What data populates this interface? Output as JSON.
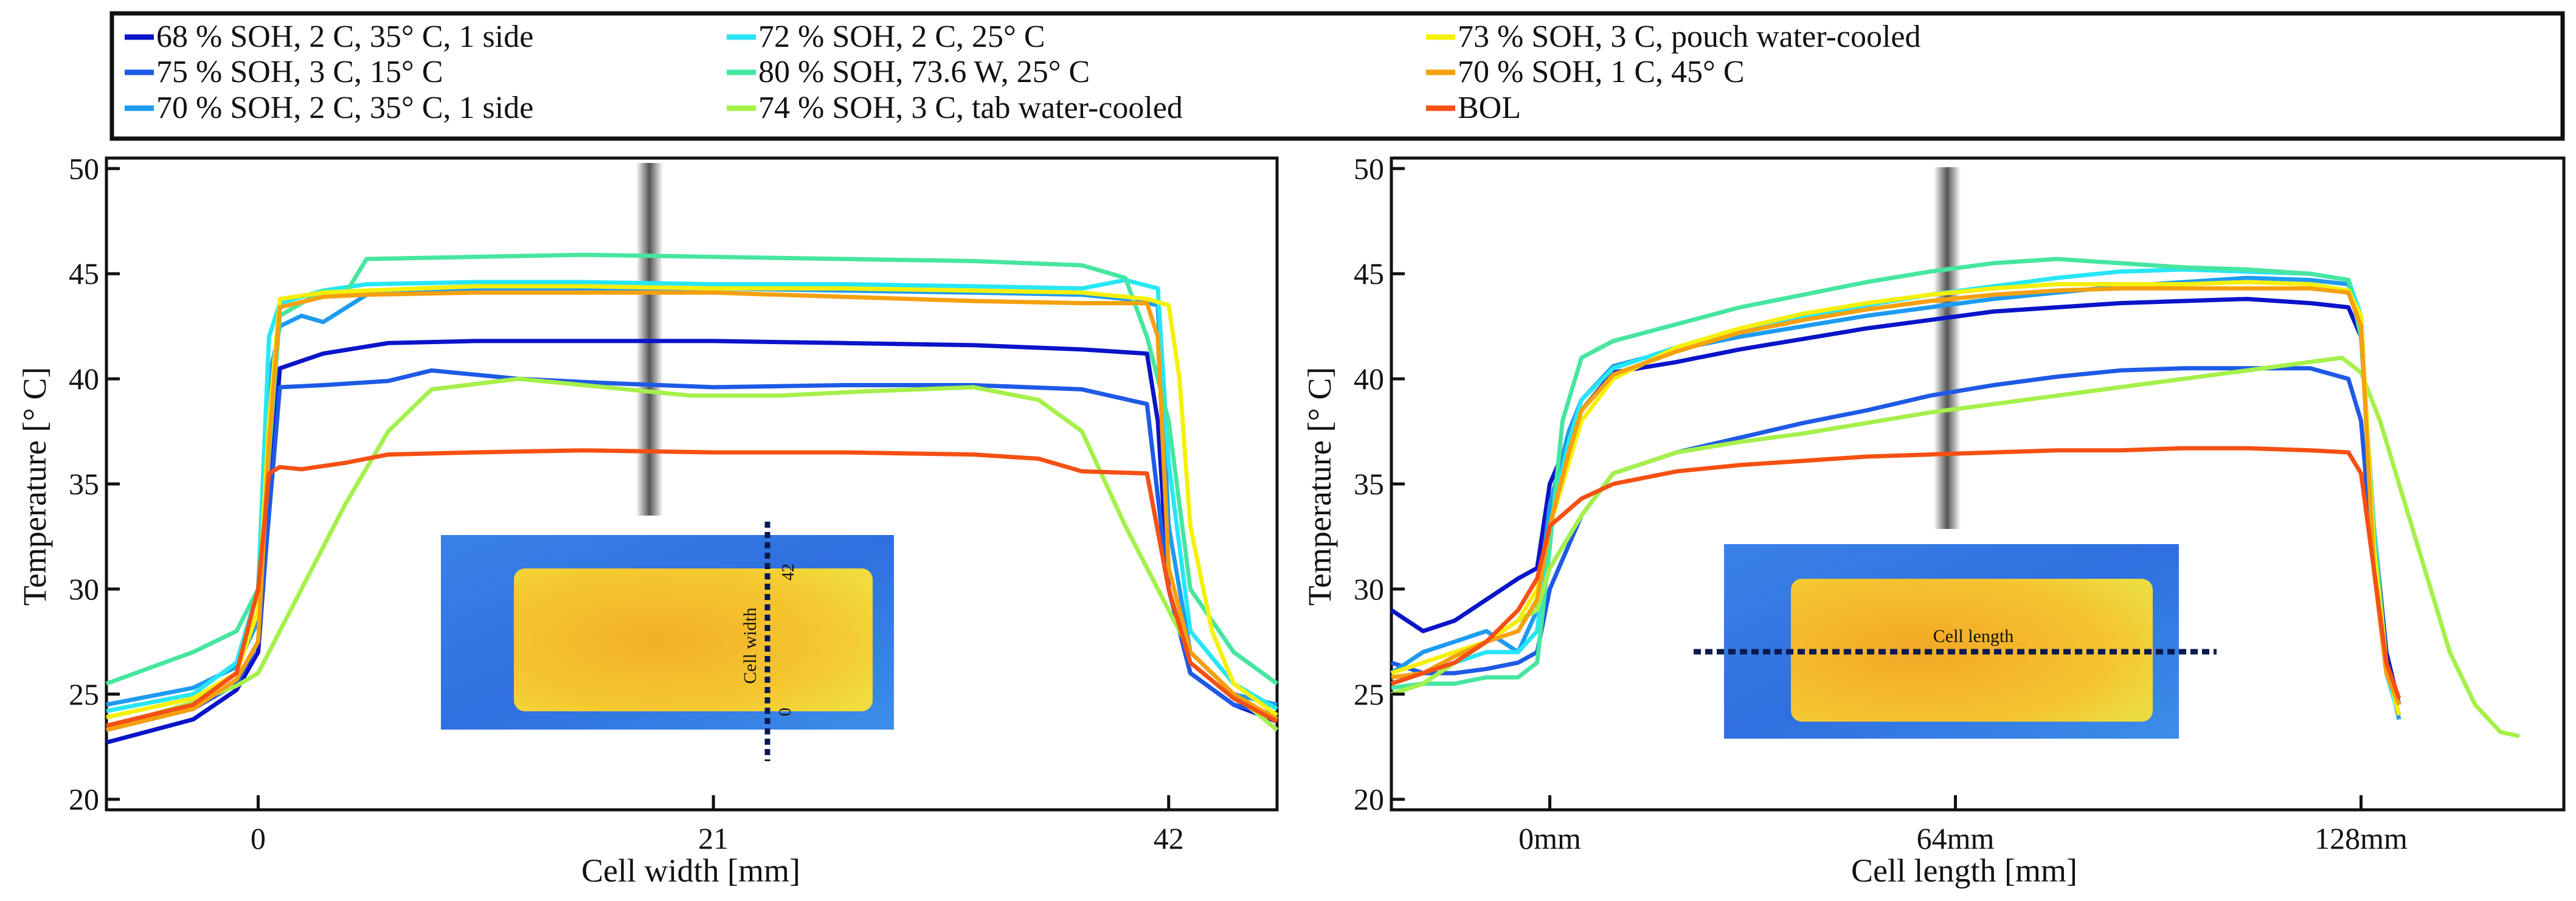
{
  "legend": {
    "entries": [
      {
        "label": "68 % SOH, 2 C, 35° C, 1 side",
        "color": "#0a14c8"
      },
      {
        "label": "75 % SOH, 3 C, 15° C",
        "color": "#1e5ae6"
      },
      {
        "label": "70 % SOH, 2 C, 35° C, 1 side",
        "color": "#1e9bf0"
      },
      {
        "label": "72 % SOH, 2 C, 25° C",
        "color": "#28e6f5"
      },
      {
        "label": "80 % SOH, 73.6 W, 25° C",
        "color": "#46e6a0"
      },
      {
        "label": "74 % SOH, 3 C, tab water-cooled",
        "color": "#a5f04b"
      },
      {
        "label": "73 % SOH, 3 C, pouch water-cooled",
        "color": "#f5f00a"
      },
      {
        "label": "70 % SOH, 1 C, 45° C",
        "color": "#f5a00f"
      },
      {
        "label": "BOL",
        "color": "#f55014"
      }
    ]
  },
  "chart_data": [
    {
      "type": "line",
      "xlabel": "Cell width [mm]",
      "ylabel": "Temperature [° C]",
      "xlim": [
        -7,
        47
      ],
      "ylim": [
        19.5,
        50.5
      ],
      "xticks": [
        {
          "value": 0,
          "label": "0"
        },
        {
          "value": 21,
          "label": "21"
        },
        {
          "value": 42,
          "label": "42"
        }
      ],
      "yticks": [
        20,
        25,
        30,
        35,
        40,
        45,
        50
      ],
      "inset": {
        "annotation": "Cell width",
        "scale_start": "0",
        "scale_end": "42",
        "orientation": "vertical"
      },
      "series": [
        {
          "name": "68 % SOH, 2 C, 35° C, 1 side",
          "x": [
            -7,
            -3,
            -1,
            0,
            1,
            3,
            6,
            10,
            15,
            21,
            27,
            33,
            38,
            41,
            41.5,
            42,
            43,
            45,
            47
          ],
          "y": [
            22.7,
            23.8,
            25.2,
            27,
            40.5,
            41.2,
            41.7,
            41.8,
            41.8,
            41.8,
            41.7,
            41.6,
            41.4,
            41.2,
            38,
            30,
            26,
            24.5,
            23.7
          ]
        },
        {
          "name": "75 % SOH, 3 C, 15° C",
          "x": [
            -7,
            -3,
            -1,
            0,
            1,
            3,
            6,
            8,
            12,
            16,
            21,
            27,
            33,
            38,
            41,
            42,
            43,
            45,
            47
          ],
          "y": [
            23.3,
            24.3,
            25.5,
            27.5,
            39.6,
            39.7,
            39.9,
            40.4,
            40,
            39.8,
            39.6,
            39.7,
            39.7,
            39.5,
            38.8,
            30,
            26,
            24.5,
            24
          ]
        },
        {
          "name": "70 % SOH, 2 C, 35° C, 1 side",
          "x": [
            -7,
            -3,
            -1,
            0,
            0.5,
            1,
            2,
            3,
            5,
            10,
            15,
            21,
            27,
            33,
            38,
            40,
            41.5,
            42,
            43,
            45,
            47
          ],
          "y": [
            24.5,
            25.3,
            26.3,
            28.5,
            40,
            42.5,
            43,
            42.7,
            44,
            44.2,
            44.3,
            44.3,
            44.2,
            44.1,
            44,
            43.8,
            43.5,
            33,
            27,
            25,
            24.5
          ]
        },
        {
          "name": "72 % SOH, 2 C, 25° C",
          "x": [
            -7,
            -3,
            -1,
            0,
            0.5,
            1,
            3,
            5,
            10,
            15,
            21,
            27,
            33,
            38,
            40,
            41.5,
            42,
            43,
            45,
            47
          ],
          "y": [
            24.2,
            25,
            26.5,
            30,
            42,
            43.6,
            44.2,
            44.5,
            44.6,
            44.6,
            44.5,
            44.5,
            44.4,
            44.3,
            44.7,
            44.3,
            36,
            28,
            25.5,
            24.3
          ]
        },
        {
          "name": "80 % SOH, 73.6 W, 25° C",
          "x": [
            -7,
            -3,
            -1,
            0,
            1,
            3,
            4,
            5,
            10,
            15,
            21,
            27,
            33,
            38,
            40,
            41,
            42,
            43,
            45,
            47
          ],
          "y": [
            25.5,
            27,
            28,
            30,
            43,
            44.2,
            44,
            45.7,
            45.8,
            45.9,
            45.8,
            45.7,
            45.6,
            45.4,
            44.8,
            42,
            38,
            30,
            27,
            25.5
          ]
        },
        {
          "name": "74 % SOH, 3 C, tab water-cooled",
          "x": [
            -7,
            -5,
            -3,
            -1,
            0,
            2,
            4,
            6,
            8,
            12,
            16,
            20,
            24,
            28,
            33,
            36,
            38,
            40,
            42,
            43,
            45,
            47
          ],
          "y": [
            23.5,
            24,
            24.6,
            25.4,
            26,
            30,
            34,
            37.5,
            39.5,
            40,
            39.6,
            39.2,
            39.2,
            39.4,
            39.6,
            39,
            37.5,
            33,
            29,
            27,
            25,
            23.3
          ]
        },
        {
          "name": "73 % SOH, 3 C, pouch water-cooled",
          "x": [
            -7,
            -3,
            -1,
            0,
            0.5,
            1,
            3,
            5,
            10,
            15,
            21,
            27,
            33,
            38,
            41,
            42,
            42.5,
            43,
            44,
            45,
            47
          ],
          "y": [
            23.9,
            24.8,
            26,
            29,
            38,
            43.8,
            44.1,
            44.2,
            44.4,
            44.4,
            44.3,
            44.3,
            44.2,
            44.1,
            43.8,
            43.5,
            40,
            33,
            28,
            25.5,
            24
          ]
        },
        {
          "name": "70 % SOH, 1 C, 45° C",
          "x": [
            -7,
            -3,
            -1,
            0,
            0.5,
            1,
            3,
            5,
            10,
            15,
            21,
            27,
            33,
            38,
            41,
            41.5,
            42,
            43,
            45,
            47
          ],
          "y": [
            23.3,
            24.3,
            25.7,
            27.5,
            37,
            43.4,
            43.9,
            44,
            44.1,
            44.1,
            44.1,
            43.9,
            43.7,
            43.6,
            43.6,
            42,
            31,
            27,
            25,
            23.8
          ]
        },
        {
          "name": "BOL",
          "x": [
            -7,
            -3,
            -1,
            0,
            0.5,
            1,
            2,
            4,
            6,
            10,
            15,
            21,
            27,
            33,
            36,
            38,
            41,
            42,
            43,
            45,
            47
          ],
          "y": [
            23.5,
            24.5,
            26,
            30,
            35.5,
            35.8,
            35.7,
            36,
            36.4,
            36.5,
            36.6,
            36.5,
            36.5,
            36.4,
            36.2,
            35.6,
            35.5,
            30,
            26.5,
            24.8,
            23.7
          ]
        }
      ]
    },
    {
      "type": "line",
      "xlabel": "Cell length [mm]",
      "ylabel": "Temperature [° C]",
      "xlim": [
        -25,
        160
      ],
      "ylim": [
        19.5,
        50.5
      ],
      "xticks": [
        {
          "value": 0,
          "label": "0mm"
        },
        {
          "value": 64,
          "label": "64mm"
        },
        {
          "value": 128,
          "label": "128mm"
        }
      ],
      "yticks": [
        20,
        25,
        30,
        35,
        40,
        45,
        50
      ],
      "inset": {
        "annotation": "Cell length",
        "orientation": "horizontal"
      },
      "series": [
        {
          "name": "68 % SOH, 2 C, 35° C, 1 side",
          "x": [
            -25,
            -20,
            -15,
            -10,
            -5,
            -2,
            0,
            5,
            10,
            20,
            30,
            40,
            50,
            60,
            70,
            80,
            90,
            100,
            110,
            120,
            126,
            128,
            130,
            132,
            134
          ],
          "y": [
            29,
            28,
            28.5,
            29.5,
            30.5,
            31,
            35,
            38.5,
            40.3,
            40.8,
            41.4,
            41.9,
            42.4,
            42.8,
            43.2,
            43.4,
            43.6,
            43.7,
            43.8,
            43.6,
            43.4,
            42,
            33,
            27,
            24.5
          ]
        },
        {
          "name": "75 % SOH, 3 C, 15° C",
          "x": [
            -25,
            -20,
            -15,
            -10,
            -5,
            -2,
            0,
            5,
            10,
            20,
            30,
            40,
            50,
            60,
            70,
            80,
            90,
            100,
            110,
            120,
            126,
            128,
            130,
            132,
            134
          ],
          "y": [
            26.5,
            26,
            26,
            26.2,
            26.5,
            27,
            30,
            33.5,
            35.5,
            36.5,
            37.2,
            37.9,
            38.5,
            39.2,
            39.7,
            40.1,
            40.4,
            40.5,
            40.5,
            40.5,
            40,
            38,
            31,
            26,
            24
          ]
        },
        {
          "name": "70 % SOH, 2 C, 35° C, 1 side",
          "x": [
            -25,
            -20,
            -15,
            -10,
            -5,
            -2,
            0,
            3,
            5,
            10,
            20,
            30,
            40,
            50,
            60,
            70,
            80,
            90,
            100,
            110,
            120,
            126,
            128,
            130,
            132,
            134
          ],
          "y": [
            26,
            27,
            27.5,
            28,
            27,
            29,
            34,
            37.5,
            39,
            40.6,
            41.4,
            42,
            42.5,
            43,
            43.4,
            43.8,
            44.1,
            44.4,
            44.6,
            44.8,
            44.7,
            44.5,
            43,
            32,
            26.5,
            23.8
          ]
        },
        {
          "name": "72 % SOH, 2 C, 25° C",
          "x": [
            -25,
            -20,
            -15,
            -10,
            -5,
            -2,
            0,
            3,
            5,
            10,
            20,
            30,
            40,
            50,
            60,
            70,
            80,
            90,
            100,
            110,
            120,
            126,
            128,
            130,
            132,
            134
          ],
          "y": [
            25.5,
            26,
            26.5,
            27,
            27,
            28,
            33,
            37,
            39,
            40.5,
            41.5,
            42.3,
            42.9,
            43.5,
            44,
            44.4,
            44.8,
            45.1,
            45.2,
            45.1,
            45,
            44.7,
            43,
            32,
            26,
            24
          ]
        },
        {
          "name": "80 % SOH, 73.6 W, 25° C",
          "x": [
            -25,
            -20,
            -15,
            -10,
            -5,
            -2,
            0,
            2,
            5,
            10,
            20,
            30,
            40,
            50,
            60,
            70,
            80,
            90,
            100,
            110,
            120,
            126,
            128,
            130,
            132,
            134
          ],
          "y": [
            25.3,
            25.5,
            25.5,
            25.8,
            25.8,
            26.5,
            32,
            38,
            41,
            41.8,
            42.6,
            43.4,
            44,
            44.6,
            45.1,
            45.5,
            45.7,
            45.5,
            45.3,
            45.2,
            45,
            44.7,
            42,
            33,
            26.5,
            24
          ]
        },
        {
          "name": "74 % SOH, 3 C, tab water-cooled",
          "x": [
            -25,
            -20,
            -15,
            -10,
            -5,
            -2,
            0,
            5,
            10,
            20,
            30,
            40,
            50,
            60,
            70,
            80,
            90,
            100,
            110,
            120,
            125,
            128,
            131,
            134,
            138,
            142,
            146,
            150,
            153
          ],
          "y": [
            25,
            25.5,
            26.5,
            27.5,
            28.5,
            29,
            31,
            33.5,
            35.5,
            36.5,
            37,
            37.4,
            37.9,
            38.4,
            38.8,
            39.2,
            39.6,
            40,
            40.4,
            40.8,
            41,
            40.3,
            38,
            35,
            31,
            27,
            24.5,
            23.2,
            23
          ]
        },
        {
          "name": "73 % SOH, 3 C, pouch water-cooled",
          "x": [
            -25,
            -20,
            -15,
            -10,
            -5,
            -2,
            0,
            3,
            5,
            10,
            20,
            30,
            40,
            50,
            60,
            70,
            80,
            90,
            100,
            110,
            120,
            126,
            128,
            130,
            132,
            134
          ],
          "y": [
            26,
            26.5,
            27,
            27.5,
            28.5,
            30,
            33,
            36,
            38,
            40,
            41.5,
            42.4,
            43.1,
            43.6,
            44,
            44.3,
            44.5,
            44.5,
            44.5,
            44.6,
            44.5,
            44.2,
            43,
            32,
            26.5,
            24
          ]
        },
        {
          "name": "70 % SOH, 1 C, 45° C",
          "x": [
            -25,
            -20,
            -15,
            -10,
            -5,
            -2,
            0,
            3,
            5,
            10,
            20,
            30,
            40,
            50,
            60,
            70,
            80,
            90,
            100,
            110,
            120,
            126,
            128,
            130,
            132,
            134
          ],
          "y": [
            25.8,
            26,
            26.8,
            27.5,
            28,
            29.5,
            33,
            36.5,
            38.5,
            40.2,
            41.3,
            42.2,
            42.8,
            43.3,
            43.7,
            44,
            44.2,
            44.3,
            44.3,
            44.3,
            44.3,
            44.1,
            42.5,
            31,
            26,
            24.5
          ]
        },
        {
          "name": "BOL",
          "x": [
            -25,
            -20,
            -15,
            -10,
            -5,
            -2,
            0,
            5,
            10,
            20,
            30,
            40,
            50,
            60,
            70,
            80,
            90,
            100,
            110,
            120,
            126,
            128,
            130,
            132,
            134
          ],
          "y": [
            25.5,
            26,
            26.5,
            27.5,
            29,
            30.5,
            33,
            34.3,
            35,
            35.6,
            35.9,
            36.1,
            36.3,
            36.4,
            36.5,
            36.6,
            36.6,
            36.7,
            36.7,
            36.6,
            36.5,
            35.5,
            31,
            26.5,
            24.8
          ]
        }
      ]
    }
  ]
}
